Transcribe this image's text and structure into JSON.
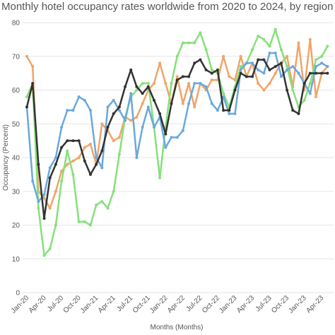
{
  "chart_data": {
    "type": "line",
    "title": "Monthly hotel occupancy rates worldwide from 2020 to 2024, by region",
    "x_label": "Months (Months)",
    "y_label": "Occupancy (Percent)",
    "categories": [
      "Jan-20",
      null,
      null,
      "Apr-20",
      null,
      null,
      "Jul-20",
      null,
      null,
      "Oct-20",
      null,
      null,
      "Jan-21",
      null,
      null,
      "Apr-21",
      null,
      null,
      "Jul-21",
      null,
      null,
      "Oct-21",
      null,
      null,
      "Jan-22",
      null,
      null,
      "Apr-22",
      null,
      null,
      "Jul-22",
      null,
      null,
      "Oct-22",
      null,
      null,
      "Jan-23",
      null,
      null,
      "Apr-23",
      null,
      null,
      "Jul-23",
      null,
      null,
      "Oct-23",
      null,
      null,
      "Jan-23",
      null,
      null,
      "Apr-23",
      null
    ],
    "ylim": [
      0,
      80
    ],
    "yticks": [
      0,
      10,
      20,
      30,
      40,
      50,
      60,
      70,
      80
    ],
    "grid": true,
    "series": [
      {
        "color": "#f0a468",
        "values": [
          70,
          67,
          30,
          28,
          25,
          30,
          36,
          38,
          39,
          40,
          43,
          44,
          38,
          50,
          48,
          45,
          46,
          52,
          51,
          52,
          56,
          60,
          62,
          68,
          62,
          56,
          64,
          56,
          62,
          55,
          62,
          60,
          63,
          63,
          70,
          64,
          63,
          70,
          64,
          68,
          62,
          60,
          62,
          65,
          68,
          70,
          61,
          74,
          60,
          75,
          58,
          65,
          67
        ]
      },
      {
        "color": "#86e07a",
        "values": [
          58,
          62,
          25,
          11,
          13,
          20,
          33,
          42,
          35,
          21,
          21,
          20,
          26,
          27,
          25,
          30,
          41,
          52,
          58,
          60,
          62,
          62,
          49,
          34,
          49,
          62,
          70,
          74,
          74,
          74,
          77,
          72,
          66,
          65,
          59,
          55,
          61,
          67,
          68,
          72,
          76,
          75,
          73,
          78,
          72,
          67,
          60,
          55,
          57,
          62,
          69,
          70,
          73
        ]
      },
      {
        "color": "#6aa8dc",
        "values": [
          55,
          33,
          27,
          29,
          37,
          40,
          49,
          54,
          54,
          58,
          57,
          54,
          40,
          37,
          55,
          57,
          54,
          51,
          59,
          40,
          49,
          55,
          49,
          52,
          43,
          46,
          46,
          48,
          56,
          62,
          62,
          61,
          56,
          54,
          58,
          53,
          53,
          66,
          68,
          68,
          66,
          65,
          71,
          71,
          64,
          66,
          67,
          65,
          62,
          59,
          67,
          68,
          67
        ]
      },
      {
        "color": "#333333",
        "values": [
          55,
          62,
          38,
          22,
          34,
          38,
          43,
          45,
          45,
          45,
          39,
          35,
          38,
          42,
          49,
          53,
          55,
          61,
          66,
          61,
          59,
          61,
          57,
          53,
          47,
          56,
          63,
          64,
          64,
          68,
          69,
          66,
          65,
          66,
          54,
          54,
          60,
          65,
          64,
          64,
          69,
          69,
          66,
          67,
          68,
          60,
          54,
          53,
          62,
          65,
          65,
          65,
          65
        ]
      }
    ]
  }
}
